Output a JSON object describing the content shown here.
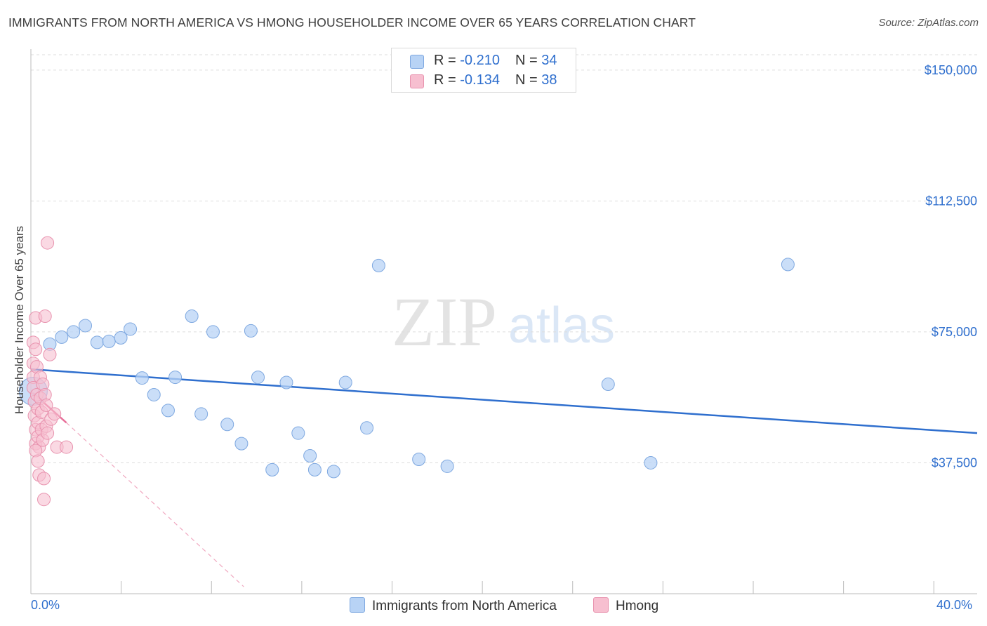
{
  "title": "IMMIGRANTS FROM NORTH AMERICA VS HMONG HOUSEHOLDER INCOME OVER 65 YEARS CORRELATION CHART",
  "source": "Source: ZipAtlas.com",
  "watermark": {
    "zip": "ZIP",
    "atlas": "atlas"
  },
  "colors": {
    "blue_fill": "#b8d3f5",
    "blue_line": "#2f6fce",
    "pink_fill": "#f7bfd0",
    "pink_line": "#e8709a",
    "tick_text": "#2f6fce"
  },
  "legend": {
    "rows": [
      {
        "r_label": "R = ",
        "r_value": "-0.210",
        "n_label": "N = ",
        "n_value": "34"
      },
      {
        "r_label": "R = ",
        "r_value": "-0.134",
        "n_label": "N = ",
        "n_value": "38"
      }
    ]
  },
  "bottom_legend": [
    "Immigrants from North America",
    "Hmong"
  ],
  "chart_data": {
    "type": "scatter",
    "title": "IMMIGRANTS FROM NORTH AMERICA VS HMONG HOUSEHOLDER INCOME OVER 65 YEARS CORRELATION CHART",
    "xlabel": "",
    "ylabel": "Householder Income Over 65 years",
    "xlim": [
      0,
      40
    ],
    "ylim": [
      0,
      156000
    ],
    "x_tick_labels": [
      "0.0%",
      "40.0%"
    ],
    "y_ticks": [
      37500,
      75000,
      112500,
      150000
    ],
    "y_tick_labels": [
      "$37,500",
      "$75,000",
      "$112,500",
      "$150,000"
    ],
    "grid": true,
    "series": [
      {
        "name": "Immigrants from North America",
        "color": "#b8d3f5",
        "trend": {
          "x": [
            0,
            40
          ],
          "y": [
            64300,
            46000
          ]
        },
        "points": [
          [
            0.1,
            58000
          ],
          [
            0.8,
            71500
          ],
          [
            1.3,
            73500
          ],
          [
            1.8,
            75000
          ],
          [
            2.3,
            76800
          ],
          [
            2.8,
            72000
          ],
          [
            3.3,
            72300
          ],
          [
            3.8,
            73300
          ],
          [
            4.2,
            75800
          ],
          [
            4.7,
            61800
          ],
          [
            5.2,
            57000
          ],
          [
            5.8,
            52500
          ],
          [
            6.1,
            62000
          ],
          [
            6.8,
            79500
          ],
          [
            7.2,
            51500
          ],
          [
            7.7,
            75000
          ],
          [
            8.3,
            48500
          ],
          [
            9.3,
            75300
          ],
          [
            8.9,
            43000
          ],
          [
            9.6,
            62000
          ],
          [
            10.2,
            35500
          ],
          [
            10.8,
            60500
          ],
          [
            11.3,
            46000
          ],
          [
            11.8,
            39500
          ],
          [
            12.0,
            35500
          ],
          [
            12.8,
            35000
          ],
          [
            13.3,
            60500
          ],
          [
            14.2,
            47500
          ],
          [
            14.7,
            94000
          ],
          [
            16.4,
            38500
          ],
          [
            17.6,
            36500
          ],
          [
            24.4,
            60000
          ],
          [
            26.2,
            37500
          ],
          [
            32.0,
            94300
          ]
        ]
      },
      {
        "name": "Hmong",
        "color": "#f7bfd0",
        "trend": {
          "x": [
            0,
            1.5
          ],
          "y": [
            58000,
            49000
          ]
        },
        "trend_dashed": {
          "x": [
            1.5,
            9.0
          ],
          "y": [
            49000,
            2000
          ]
        },
        "points": [
          [
            0.1,
            72000
          ],
          [
            0.1,
            66000
          ],
          [
            0.1,
            62000
          ],
          [
            0.1,
            59000
          ],
          [
            0.15,
            55000
          ],
          [
            0.15,
            51000
          ],
          [
            0.2,
            47000
          ],
          [
            0.2,
            43000
          ],
          [
            0.2,
            79000
          ],
          [
            0.2,
            70000
          ],
          [
            0.25,
            65000
          ],
          [
            0.25,
            57000
          ],
          [
            0.3,
            53000
          ],
          [
            0.3,
            49000
          ],
          [
            0.3,
            45000
          ],
          [
            0.35,
            42000
          ],
          [
            0.35,
            34000
          ],
          [
            0.4,
            62000
          ],
          [
            0.4,
            56000
          ],
          [
            0.45,
            52000
          ],
          [
            0.45,
            47000
          ],
          [
            0.5,
            60000
          ],
          [
            0.5,
            44000
          ],
          [
            0.55,
            33000
          ],
          [
            0.55,
            27000
          ],
          [
            0.6,
            57000
          ],
          [
            0.6,
            79500
          ],
          [
            0.65,
            54000
          ],
          [
            0.65,
            48000
          ],
          [
            0.7,
            100500
          ],
          [
            0.7,
            46000
          ],
          [
            0.8,
            68500
          ],
          [
            0.85,
            50000
          ],
          [
            1.0,
            51500
          ],
          [
            1.1,
            42000
          ],
          [
            1.5,
            42000
          ],
          [
            0.2,
            41000
          ],
          [
            0.3,
            38000
          ]
        ]
      }
    ]
  }
}
